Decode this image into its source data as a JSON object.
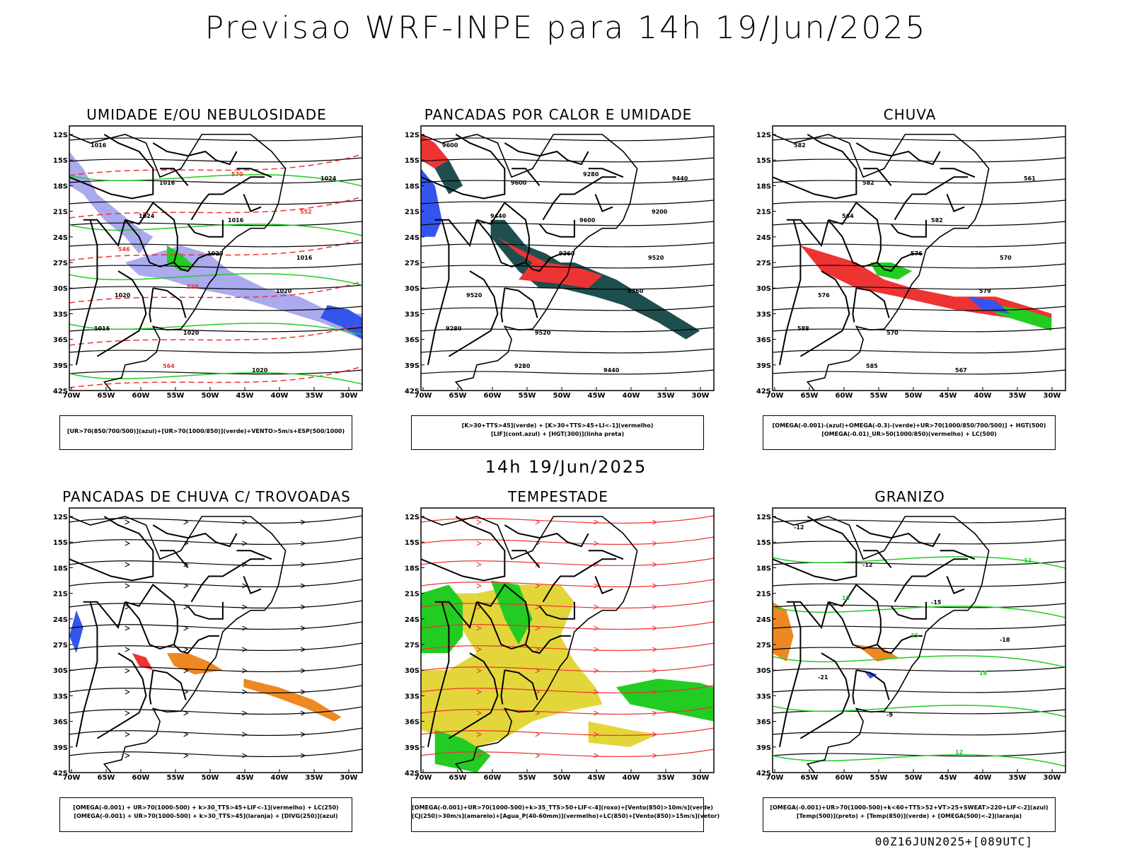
{
  "header": {
    "title": "Previsao WRF-INPE  para 14h 19/Jun/2025"
  },
  "middle": {
    "label": "14h 19/Jun/2025"
  },
  "footer": {
    "run_label": "00Z16JUN2025+[089UTC]"
  },
  "axes": {
    "lat_labels": [
      "12S",
      "15S",
      "18S",
      "21S",
      "24S",
      "27S",
      "30S",
      "33S",
      "36S",
      "39S",
      "42S"
    ],
    "lon_labels": [
      "70W",
      "65W",
      "60W",
      "55W",
      "50W",
      "45W",
      "40W",
      "35W",
      "30W"
    ]
  },
  "colors": {
    "blue": "#3355ee",
    "green": "#22cc22",
    "red": "#ee3333",
    "orange": "#ee8822",
    "lavender": "#aaaaee",
    "teal": "#1f4e4e",
    "yellow": "#e3d63a",
    "purple": "#6655aa",
    "black": "#000000"
  },
  "panels": [
    {
      "id": "umidade",
      "title": "UMIDADE E/OU NEBULOSIDADE",
      "legend": [
        "[UR>70(850/700/500)](azul)+[UR>70(1000/850)](verde)+VENTO>5m/s+ESP(500/1000)"
      ],
      "contour_labels": [
        "1016",
        "1016",
        "1016",
        "1016",
        "1020",
        "1020",
        "1020",
        "1024",
        "1024",
        "1020",
        "1020",
        "1016",
        "564",
        "570",
        "552",
        "546",
        "558"
      ]
    },
    {
      "id": "pancadas-calor",
      "title": "PANCADAS POR CALOR E UMIDADE",
      "legend": [
        "[K>30+TTS>45](verde) + [K>30+TTS>45+LI<-1](vermelho)",
        "[LIF](cont.azul) + [HGT(300)](linha preta)"
      ],
      "contour_labels": [
        "9600",
        "9600",
        "9600",
        "9520",
        "9520",
        "9520",
        "9440",
        "9440",
        "9440",
        "9360",
        "9360",
        "9280",
        "9280",
        "9280",
        "9200"
      ]
    },
    {
      "id": "chuva",
      "title": "CHUVA",
      "legend": [
        "[OMEGA(-0.001)-(azul)+OMEGA(-0.3)-(verde)+UR>70(1000/850/700/500)] + HGT(500)",
        "[OMEGA(-0.01)_UR>50(1000/850)(vermelho) + LC(500)"
      ],
      "contour_labels": [
        "582",
        "582",
        "582",
        "570",
        "576",
        "570",
        "567",
        "561",
        "564",
        "576",
        "579",
        "588",
        "585"
      ]
    },
    {
      "id": "trovoadas",
      "title": "PANCADAS DE CHUVA C/ TROVOADAS",
      "legend": [
        "[OMEGA(-0.001) + UR>70(1000-500) + k>30_TTS>45+LIF<-1](vermelho) + LC(250)",
        "[OMEGA(-0.001) + UR>70(1000-500) + k>30_TTS>45](laranja) + [DIVG(250)](azul)"
      ],
      "contour_labels": []
    },
    {
      "id": "tempestade",
      "title": "TEMPESTADE",
      "legend": [
        "[OMEGA(-0.001)+UR>70(1000-500)+k>35_TTS>50+LIF<-4](roxo)+[Vento(850)>10m/s](verde)",
        "[CJ(250)>30m/s](amarelo)+[Agua_P(40-60mm)](vermelho)+LC(850)+[Vento(850)>15m/s](vetor)"
      ],
      "contour_labels": []
    },
    {
      "id": "granizo",
      "title": "GRANIZO",
      "legend": [
        "[OMEGA(-0.001)+UR>70(1000-500)+k<60+TTS>52+VT>25+SWEAT>220+LIF<-2](azul)",
        "[Temp(500)](preto) + [Temp(850)](verde) + [OMEGA(500)<-2](laranja)"
      ],
      "contour_labels": [
        "-12",
        "-12",
        "-15",
        "-18",
        "-21",
        "-9",
        "12",
        "12",
        "15",
        "15",
        "18"
      ]
    }
  ]
}
